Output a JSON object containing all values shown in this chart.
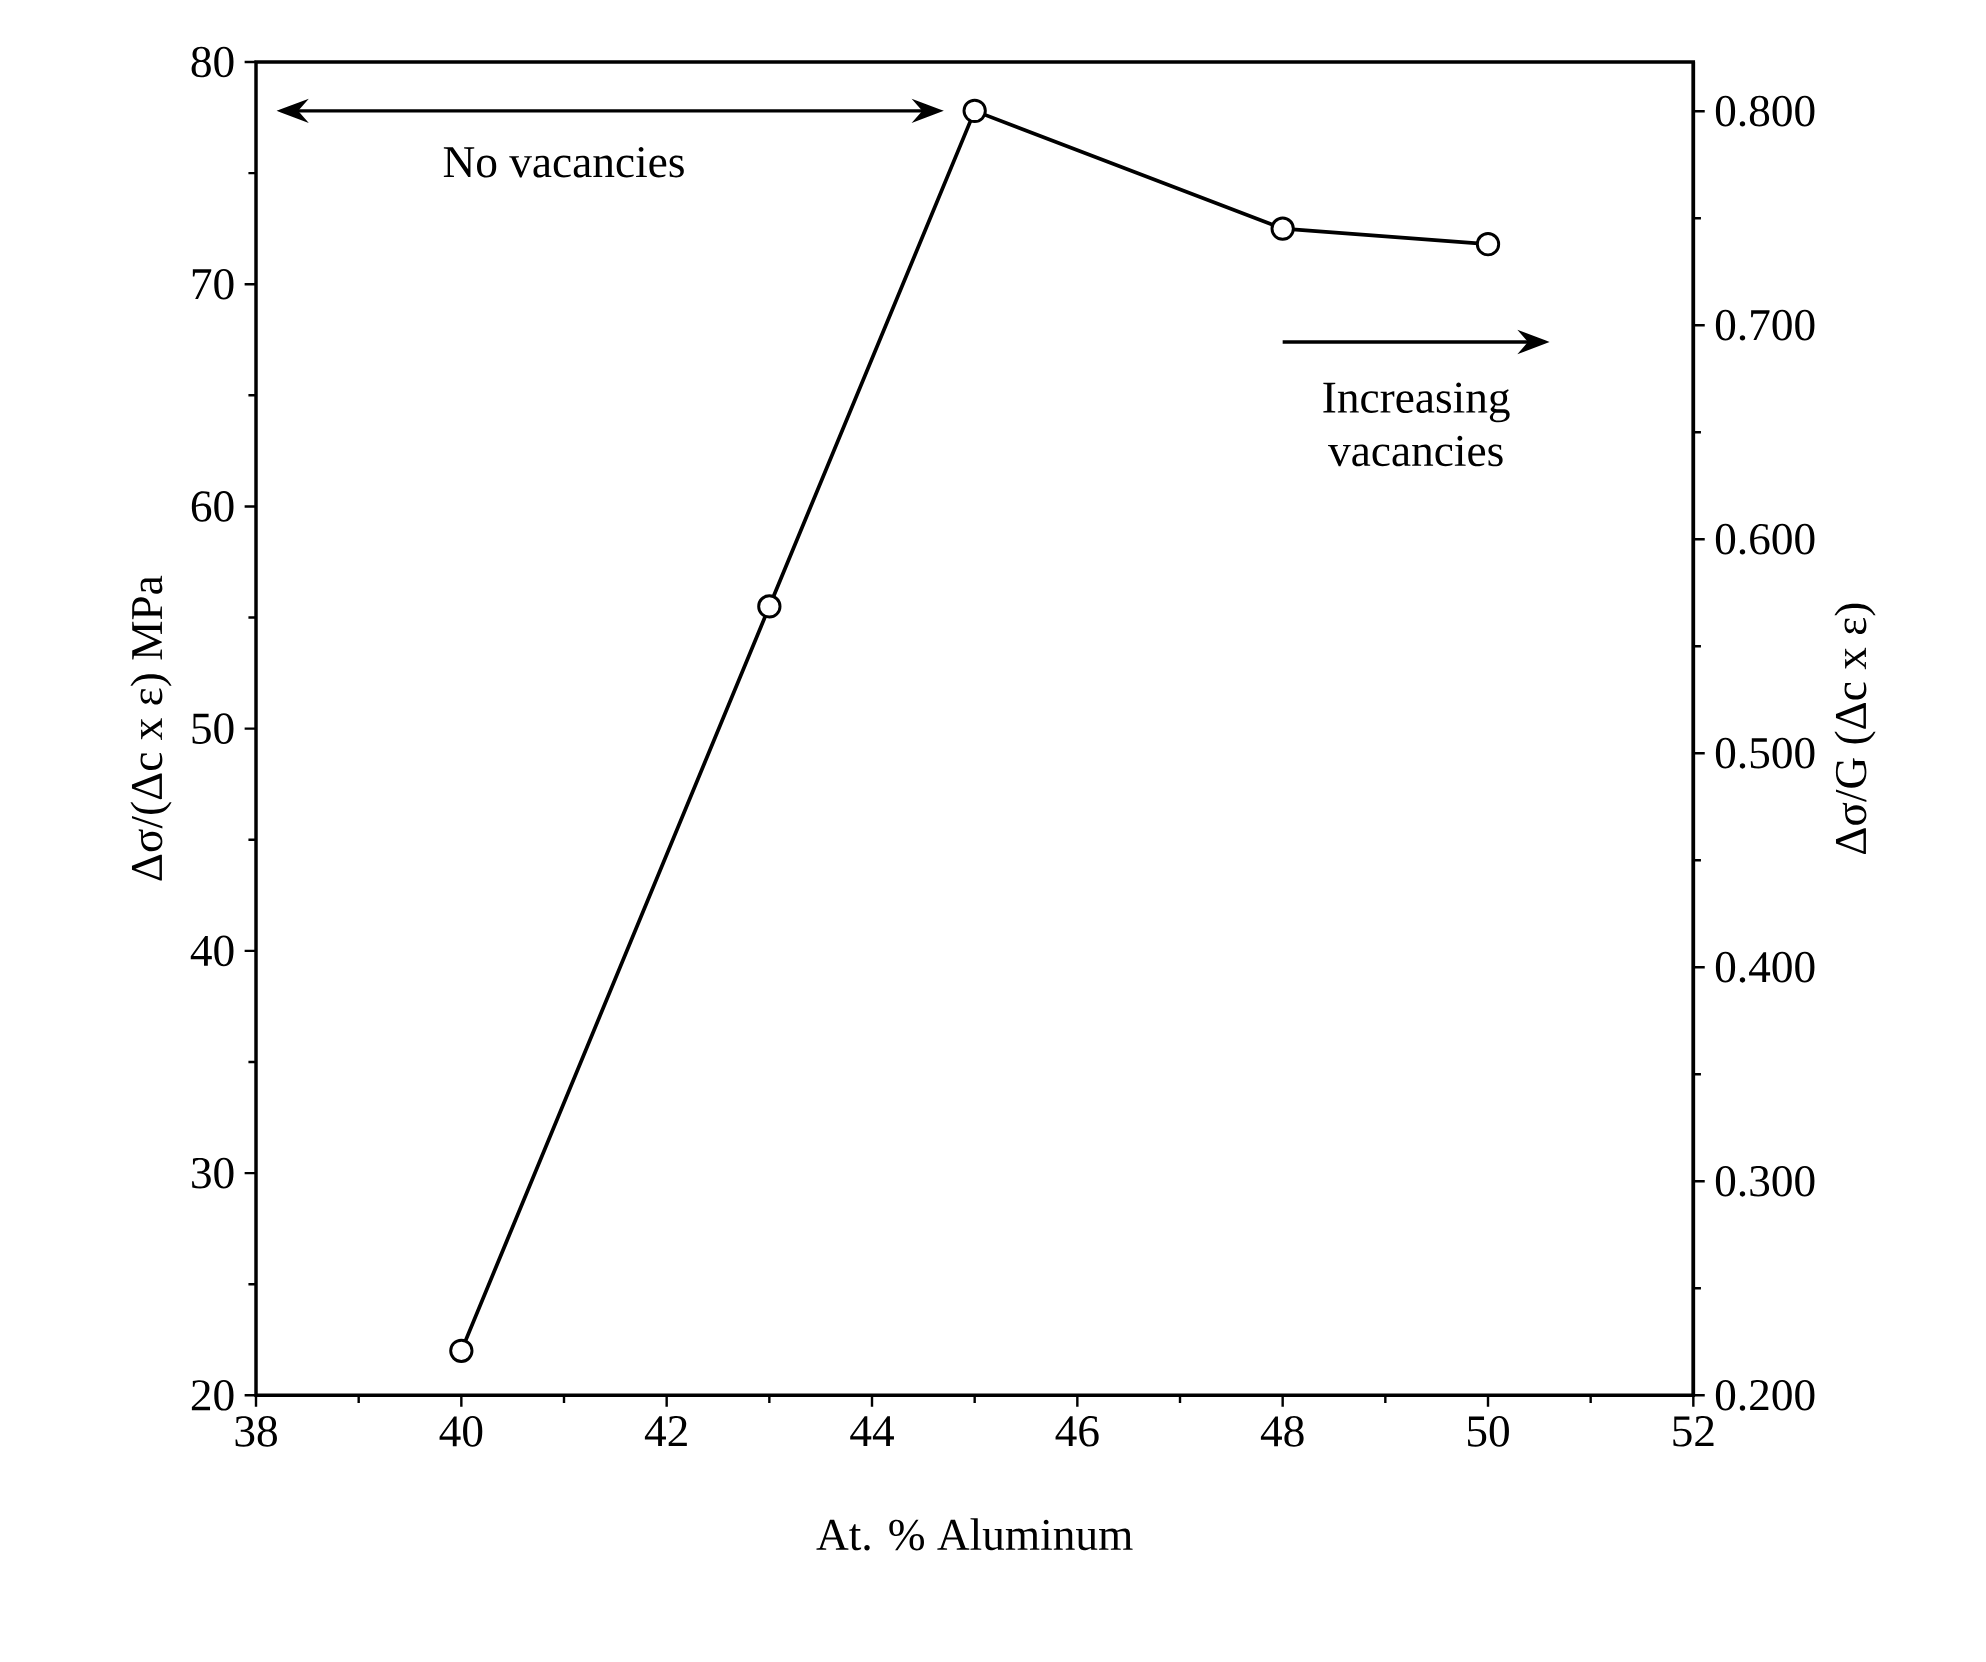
{
  "chart_data": {
    "type": "line",
    "xlabel": "At. % Aluminum",
    "ylabel": "Δσ/(Δc x ε)  MPa",
    "y2label": "Δσ/G (Δc x ε)",
    "x": [
      40,
      43,
      45,
      48,
      50
    ],
    "series": [
      {
        "color": "#000000",
        "values": [
          22,
          55.5,
          77.8,
          72.5,
          71.8
        ]
      }
    ],
    "xlim": [
      38,
      52
    ],
    "xticks": [
      38,
      40,
      42,
      44,
      46,
      48,
      50,
      52
    ],
    "ylim": [
      20,
      80
    ],
    "yticks": [
      20,
      30,
      40,
      50,
      60,
      70,
      80
    ],
    "y2lim": [
      0.2,
      0.823
    ],
    "y2ticks": [
      {
        "value": 0.2,
        "label": "0.200"
      },
      {
        "value": 0.3,
        "label": "0.300"
      },
      {
        "value": 0.4,
        "label": "0.400"
      },
      {
        "value": 0.5,
        "label": "0.500"
      },
      {
        "value": 0.6,
        "label": "0.600"
      },
      {
        "value": 0.7,
        "label": "0.700"
      },
      {
        "value": 0.8,
        "label": "0.800"
      }
    ],
    "annotations": [
      "No vacancies",
      "Increasing vacancies"
    ],
    "marker": "circle",
    "line_style": "solid"
  }
}
